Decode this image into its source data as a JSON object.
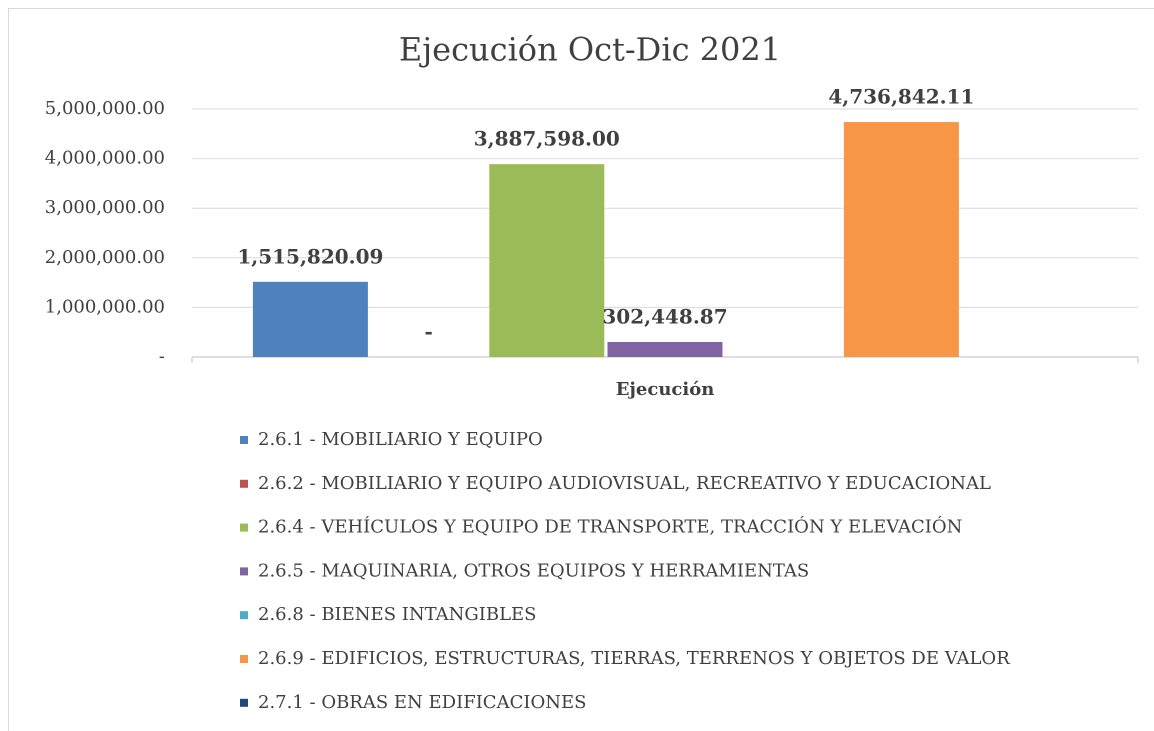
{
  "chart_data": {
    "type": "bar",
    "title": "Ejecución Oct-Dic 2021",
    "categories": [
      "Ejecución"
    ],
    "series": [
      {
        "name": "2.6.1 - MOBILIARIO Y EQUIPO",
        "color": "#4f81bd",
        "values": [
          1515820.09
        ],
        "value_labels": [
          "1,515,820.09"
        ]
      },
      {
        "name": "2.6.2 - MOBILIARIO Y EQUIPO AUDIOVISUAL, RECREATIVO Y EDUCACIONAL",
        "color": "#c0504d",
        "values": [
          0
        ],
        "value_labels": [
          "-"
        ]
      },
      {
        "name": "2.6.4 - VEHÍCULOS Y EQUIPO DE TRANSPORTE, TRACCIÓN Y ELEVACIÓN",
        "color": "#9bbb59",
        "values": [
          3887598.0
        ],
        "value_labels": [
          "3,887,598.00"
        ]
      },
      {
        "name": "2.6.5 - MAQUINARIA, OTROS EQUIPOS Y HERRAMIENTAS",
        "color": "#8064a2",
        "values": [
          302448.87
        ],
        "value_labels": [
          "302,448.87"
        ]
      },
      {
        "name": "2.6.8 - BIENES INTANGIBLES",
        "color": "#4bacc6",
        "values": [
          null
        ],
        "value_labels": [
          null
        ]
      },
      {
        "name": "2.6.9 - EDIFICIOS, ESTRUCTURAS, TIERRAS, TERRENOS Y OBJETOS DE VALOR",
        "color": "#f79646",
        "values": [
          4736842.11
        ],
        "value_labels": [
          "4,736,842.11"
        ]
      },
      {
        "name": "2.7.1 - OBRAS EN EDIFICACIONES",
        "color": "#1f497d",
        "values": [
          null
        ],
        "value_labels": [
          null
        ]
      }
    ],
    "ylim": [
      0,
      5000000
    ],
    "yticks": [
      {
        "value": 0,
        "label": "-"
      },
      {
        "value": 1000000,
        "label": "1,000,000.00"
      },
      {
        "value": 2000000,
        "label": "2,000,000.00"
      },
      {
        "value": 3000000,
        "label": "3,000,000.00"
      },
      {
        "value": 4000000,
        "label": "4,000,000.00"
      },
      {
        "value": 5000000,
        "label": "5,000,000.00"
      }
    ],
    "grid": true,
    "legend": "bottom"
  }
}
